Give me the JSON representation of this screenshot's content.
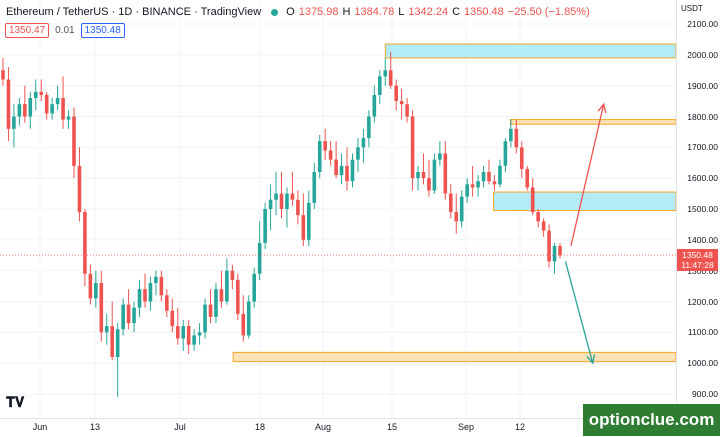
{
  "header": {
    "symbol": "Ethereum / TetherUS · 1D · BINANCE · TradingView",
    "o_label": "O",
    "o_value": "1375.98",
    "h_label": "H",
    "h_value": "1384.78",
    "l_label": "L",
    "l_value": "1342.24",
    "c_label": "C",
    "c_value": "1350.48",
    "change": "−25.50 (−1.85%)"
  },
  "badges": {
    "sell": "1350.47",
    "spread": "0.01",
    "buy": "1350.48"
  },
  "price_axis": {
    "currency": "USDT",
    "ticks": [
      "2100.00",
      "2000.00",
      "1900.00",
      "1800.00",
      "1700.00",
      "1600.00",
      "1500.00",
      "1400.00",
      "1300.00",
      "1200.00",
      "1100.00",
      "1000.00",
      "900.00"
    ],
    "last_price": "1350.48",
    "countdown": "11:47:28"
  },
  "time_axis": {
    "labels": [
      "Jun",
      "13",
      "Jul",
      "18",
      "Aug",
      "15",
      "Sep",
      "12"
    ]
  },
  "watermark": "optionclue.com",
  "colors": {
    "up": "#26a69a",
    "down": "#ef5350",
    "zone_blue": "#b3ecf7",
    "zone_orange": "#ffe3b8",
    "zone_border": "#f5a623"
  },
  "chart_data": {
    "type": "candlestick",
    "ylim": [
      880,
      2150
    ],
    "ohlc": [
      [
        1950,
        1990,
        1900,
        1920
      ],
      [
        1920,
        1960,
        1720,
        1760
      ],
      [
        1760,
        1840,
        1700,
        1800
      ],
      [
        1800,
        1860,
        1770,
        1840
      ],
      [
        1840,
        1900,
        1780,
        1800
      ],
      [
        1800,
        1880,
        1760,
        1860
      ],
      [
        1860,
        1920,
        1820,
        1880
      ],
      [
        1880,
        1920,
        1850,
        1870
      ],
      [
        1870,
        1880,
        1790,
        1810
      ],
      [
        1810,
        1860,
        1790,
        1840
      ],
      [
        1840,
        1900,
        1820,
        1860
      ],
      [
        1860,
        1930,
        1760,
        1790
      ],
      [
        1790,
        1820,
        1760,
        1800
      ],
      [
        1800,
        1830,
        1600,
        1640
      ],
      [
        1640,
        1700,
        1460,
        1490
      ],
      [
        1490,
        1500,
        1250,
        1290
      ],
      [
        1290,
        1320,
        1190,
        1210
      ],
      [
        1210,
        1300,
        1180,
        1260
      ],
      [
        1260,
        1300,
        1070,
        1100
      ],
      [
        1100,
        1160,
        1060,
        1120
      ],
      [
        1120,
        1200,
        1010,
        1020
      ],
      [
        1020,
        1130,
        890,
        1110
      ],
      [
        1110,
        1210,
        1090,
        1190
      ],
      [
        1190,
        1240,
        1110,
        1130
      ],
      [
        1130,
        1200,
        1100,
        1180
      ],
      [
        1180,
        1270,
        1150,
        1240
      ],
      [
        1240,
        1290,
        1180,
        1200
      ],
      [
        1200,
        1280,
        1170,
        1260
      ],
      [
        1260,
        1300,
        1220,
        1280
      ],
      [
        1280,
        1300,
        1200,
        1220
      ],
      [
        1220,
        1240,
        1150,
        1170
      ],
      [
        1170,
        1210,
        1100,
        1120
      ],
      [
        1120,
        1180,
        1060,
        1080
      ],
      [
        1080,
        1140,
        1040,
        1120
      ],
      [
        1120,
        1140,
        1030,
        1060
      ],
      [
        1060,
        1110,
        1040,
        1090
      ],
      [
        1090,
        1130,
        1060,
        1100
      ],
      [
        1100,
        1210,
        1080,
        1190
      ],
      [
        1190,
        1240,
        1130,
        1150
      ],
      [
        1150,
        1260,
        1130,
        1240
      ],
      [
        1240,
        1300,
        1180,
        1200
      ],
      [
        1200,
        1340,
        1190,
        1300
      ],
      [
        1300,
        1320,
        1240,
        1270
      ],
      [
        1270,
        1290,
        1140,
        1160
      ],
      [
        1160,
        1220,
        1070,
        1090
      ],
      [
        1090,
        1220,
        1080,
        1200
      ],
      [
        1200,
        1310,
        1180,
        1290
      ],
      [
        1290,
        1460,
        1270,
        1390
      ],
      [
        1390,
        1520,
        1370,
        1500
      ],
      [
        1500,
        1580,
        1430,
        1530
      ],
      [
        1530,
        1620,
        1480,
        1550
      ],
      [
        1550,
        1620,
        1470,
        1500
      ],
      [
        1500,
        1570,
        1440,
        1550
      ],
      [
        1550,
        1620,
        1510,
        1530
      ],
      [
        1530,
        1560,
        1450,
        1480
      ],
      [
        1480,
        1550,
        1380,
        1400
      ],
      [
        1400,
        1560,
        1380,
        1520
      ],
      [
        1520,
        1650,
        1500,
        1620
      ],
      [
        1620,
        1740,
        1600,
        1720
      ],
      [
        1720,
        1760,
        1660,
        1690
      ],
      [
        1690,
        1720,
        1640,
        1660
      ],
      [
        1660,
        1720,
        1600,
        1610
      ],
      [
        1610,
        1680,
        1580,
        1640
      ],
      [
        1640,
        1700,
        1560,
        1590
      ],
      [
        1590,
        1680,
        1570,
        1660
      ],
      [
        1660,
        1730,
        1620,
        1700
      ],
      [
        1700,
        1760,
        1650,
        1730
      ],
      [
        1730,
        1820,
        1700,
        1800
      ],
      [
        1800,
        1900,
        1780,
        1870
      ],
      [
        1870,
        1950,
        1840,
        1930
      ],
      [
        1930,
        1990,
        1900,
        1950
      ],
      [
        1950,
        2010,
        1890,
        1900
      ],
      [
        1900,
        1920,
        1820,
        1850
      ],
      [
        1850,
        1890,
        1790,
        1840
      ],
      [
        1840,
        1860,
        1780,
        1800
      ],
      [
        1800,
        1820,
        1560,
        1600
      ],
      [
        1600,
        1640,
        1560,
        1620
      ],
      [
        1620,
        1680,
        1580,
        1600
      ],
      [
        1600,
        1660,
        1540,
        1560
      ],
      [
        1560,
        1680,
        1550,
        1660
      ],
      [
        1660,
        1720,
        1640,
        1680
      ],
      [
        1680,
        1720,
        1530,
        1550
      ],
      [
        1550,
        1580,
        1470,
        1490
      ],
      [
        1490,
        1550,
        1420,
        1460
      ],
      [
        1460,
        1560,
        1440,
        1540
      ],
      [
        1540,
        1600,
        1520,
        1580
      ],
      [
        1580,
        1640,
        1540,
        1570
      ],
      [
        1570,
        1610,
        1540,
        1590
      ],
      [
        1590,
        1640,
        1570,
        1620
      ],
      [
        1620,
        1660,
        1580,
        1590
      ],
      [
        1590,
        1610,
        1560,
        1580
      ],
      [
        1580,
        1660,
        1570,
        1640
      ],
      [
        1640,
        1730,
        1620,
        1720
      ],
      [
        1720,
        1790,
        1700,
        1760
      ],
      [
        1760,
        1790,
        1680,
        1700
      ],
      [
        1700,
        1720,
        1600,
        1630
      ],
      [
        1630,
        1640,
        1560,
        1570
      ],
      [
        1570,
        1600,
        1480,
        1490
      ],
      [
        1490,
        1500,
        1440,
        1460
      ],
      [
        1460,
        1470,
        1410,
        1430
      ],
      [
        1430,
        1450,
        1310,
        1330
      ],
      [
        1330,
        1390,
        1290,
        1380
      ],
      [
        1380,
        1390,
        1340,
        1350
      ]
    ],
    "zones": [
      {
        "from": 1990,
        "to": 2035,
        "x0": 0.57,
        "x1": 1.0,
        "fill": "blue"
      },
      {
        "from": 1775,
        "to": 1790,
        "x0": 0.755,
        "x1": 1.0,
        "fill": "orange"
      },
      {
        "from": 1495,
        "to": 1555,
        "x0": 0.73,
        "x1": 1.0,
        "fill": "blue"
      },
      {
        "from": 1005,
        "to": 1035,
        "x0": 0.345,
        "x1": 1.0,
        "fill": "orange"
      }
    ],
    "arrows": [
      {
        "from_idx": 104,
        "from_price": 1380,
        "to_idx": 110,
        "to_price": 1840,
        "color": "#ef5350"
      },
      {
        "from_idx": 103,
        "from_price": 1330,
        "to_idx": 108,
        "to_price": 1000,
        "color": "#26a69a"
      }
    ]
  }
}
